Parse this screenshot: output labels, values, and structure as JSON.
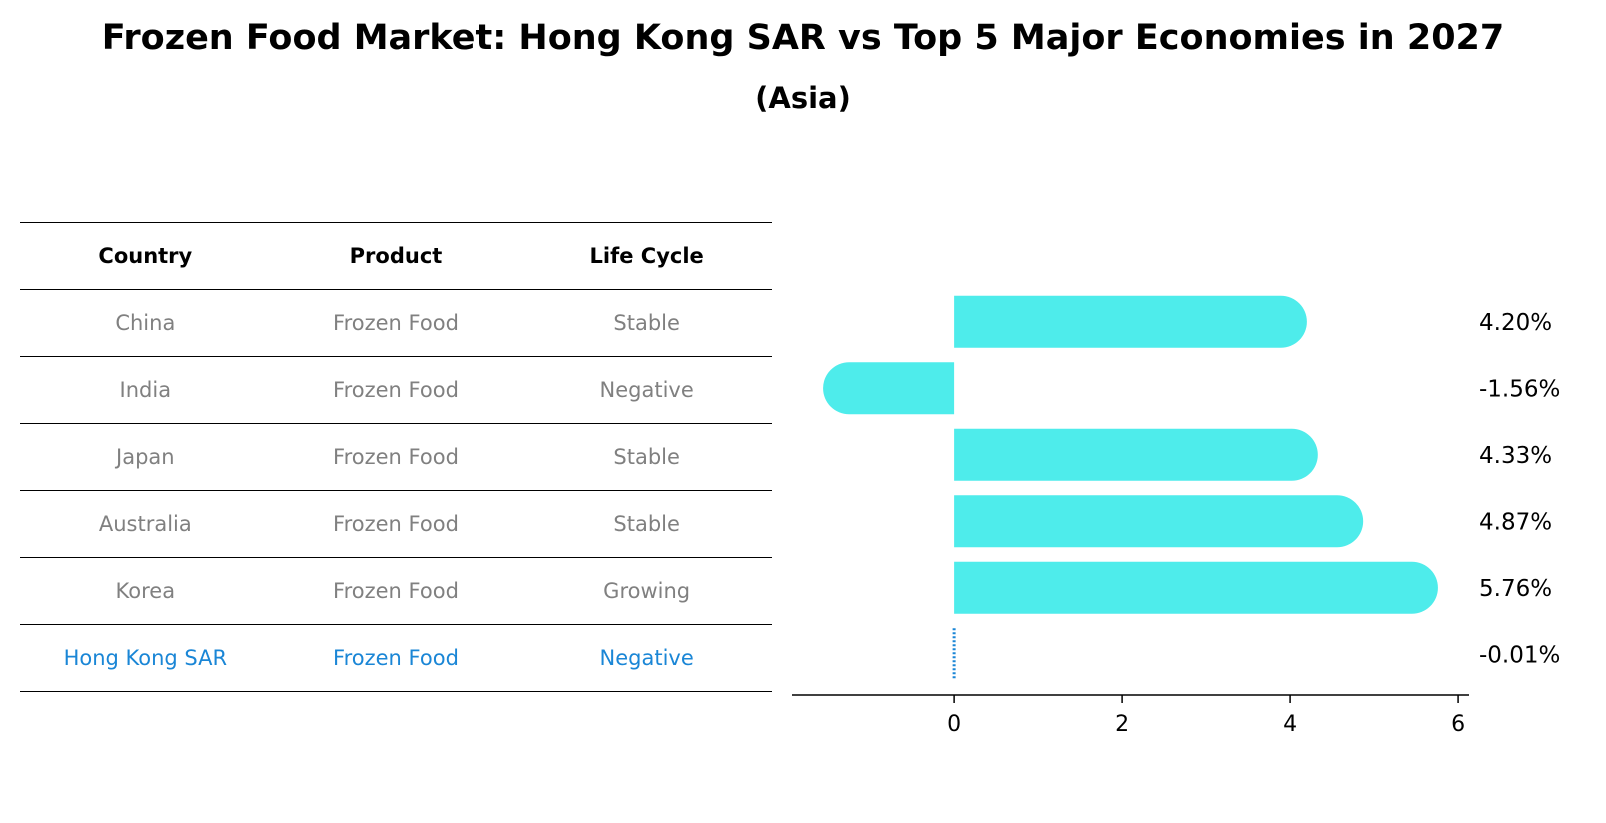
{
  "header": {
    "title": "Frozen Food Market: Hong Kong SAR vs Top 5 Major Economies in 2027",
    "subtitle": "(Asia)"
  },
  "table": {
    "columns": [
      "Country",
      "Product",
      "Life Cycle"
    ],
    "rows": [
      [
        "China",
        "Frozen Food",
        "Stable"
      ],
      [
        "India",
        "Frozen Food",
        "Negative"
      ],
      [
        "Japan",
        "Frozen Food",
        "Stable"
      ],
      [
        "Australia",
        "Frozen Food",
        "Stable"
      ],
      [
        "Korea",
        "Frozen Food",
        "Growing"
      ],
      [
        "Hong Kong SAR",
        "Frozen Food",
        "Negative"
      ]
    ],
    "highlight_row": 5
  },
  "colors": {
    "bar": "#4eeceb",
    "highlight": "#1a86d6",
    "muted_text": "#808080"
  },
  "chart_data": {
    "type": "bar",
    "orientation": "horizontal",
    "categories": [
      "China",
      "India",
      "Japan",
      "Australia",
      "Korea",
      "Hong Kong SAR"
    ],
    "values": [
      4.2,
      -1.56,
      4.33,
      4.87,
      5.76,
      -0.01
    ],
    "value_labels": [
      "4.20%",
      "-1.56%",
      "4.33%",
      "4.87%",
      "5.76%",
      "-0.01%"
    ],
    "xlim": [
      -1.93,
      6.13
    ],
    "xticks": [
      0,
      2,
      4,
      6
    ],
    "grid": false
  }
}
